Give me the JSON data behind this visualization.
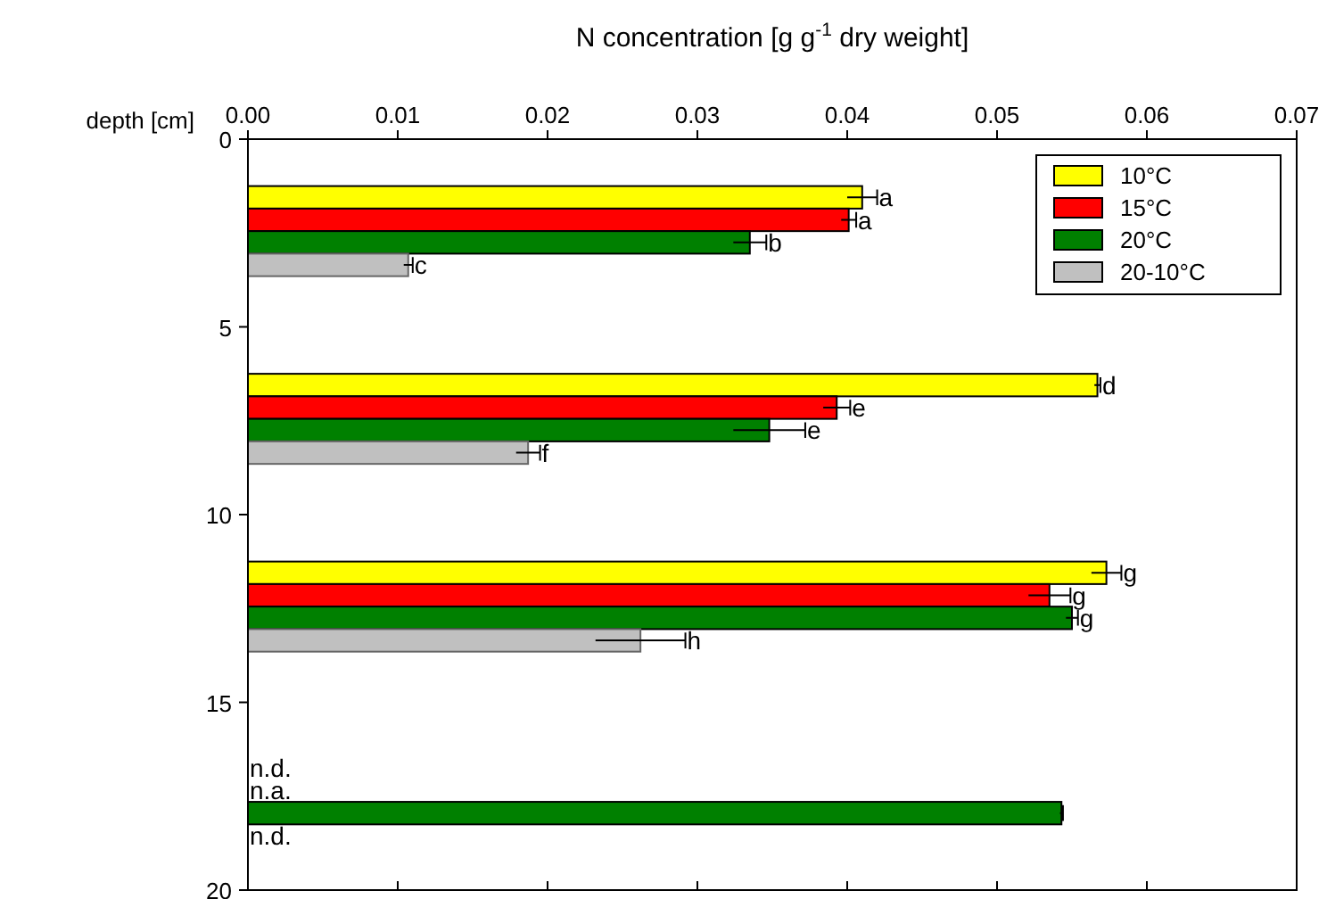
{
  "chart_data": {
    "type": "bar",
    "orientation": "horizontal",
    "xlabel": "N concentration [g g$^{-1}$ dry weight]",
    "ylabel": "depth [cm]",
    "xlim": [
      0,
      0.07
    ],
    "xticks": [
      {
        "value": 0,
        "label": "0.00"
      },
      0.01,
      0.02,
      0.03,
      0.04,
      0.05,
      0.06,
      0.07
    ],
    "ylim": [
      20,
      0
    ],
    "yticks": [
      0,
      5,
      10,
      15,
      20
    ],
    "grid": false,
    "legend": "top right",
    "series": [
      {
        "name": "10°C",
        "color": "#ffff00",
        "x": [
          1.55,
          6.55,
          11.55
        ],
        "values": [
          0.041,
          0.0567,
          0.0573
        ],
        "errors": [
          0.001,
          0.0002,
          0.001
        ]
      },
      {
        "name": "15°C",
        "color": "#ff0000",
        "x": [
          2.15,
          7.15,
          12.15
        ],
        "values": [
          0.0401,
          0.0393,
          0.0535
        ],
        "errors": [
          0.0005,
          0.0009,
          0.0014
        ]
      },
      {
        "name": "20°C",
        "color": "#008000",
        "x": [
          2.75,
          7.75,
          12.75,
          17.95
        ],
        "values": [
          0.0335,
          0.0348,
          0.055,
          0.0543
        ],
        "errors": [
          0.0011,
          0.0024,
          0.0004,
          0.0001
        ]
      },
      {
        "name": "20-10°C",
        "color": "#c0c0c0",
        "x": [
          3.35,
          8.35,
          13.35
        ],
        "values": [
          0.0107,
          0.0187,
          0.0262
        ],
        "errors": [
          0.0003,
          0.0008,
          0.003
        ]
      }
    ],
    "annotations": [
      {
        "text": "a",
        "x": 0.042,
        "y": 1.55
      },
      {
        "text": "a",
        "x": 0.0406,
        "y": 2.15
      },
      {
        "text": "b",
        "x": 0.0346,
        "y": 2.75
      },
      {
        "text": "c",
        "x": 0.011,
        "y": 3.35
      },
      {
        "text": "d",
        "x": 0.0569,
        "y": 6.55
      },
      {
        "text": "e",
        "x": 0.0402,
        "y": 7.15
      },
      {
        "text": "e",
        "x": 0.0372,
        "y": 7.75
      },
      {
        "text": "f",
        "x": 0.0195,
        "y": 8.35
      },
      {
        "text": "g",
        "x": 0.0583,
        "y": 11.55
      },
      {
        "text": "g",
        "x": 0.0549,
        "y": 12.15
      },
      {
        "text": "g",
        "x": 0.0554,
        "y": 12.75
      },
      {
        "text": "h",
        "x": 0.0292,
        "y": 13.35
      },
      "n.d.",
      "n.a.",
      "n.d."
    ]
  }
}
